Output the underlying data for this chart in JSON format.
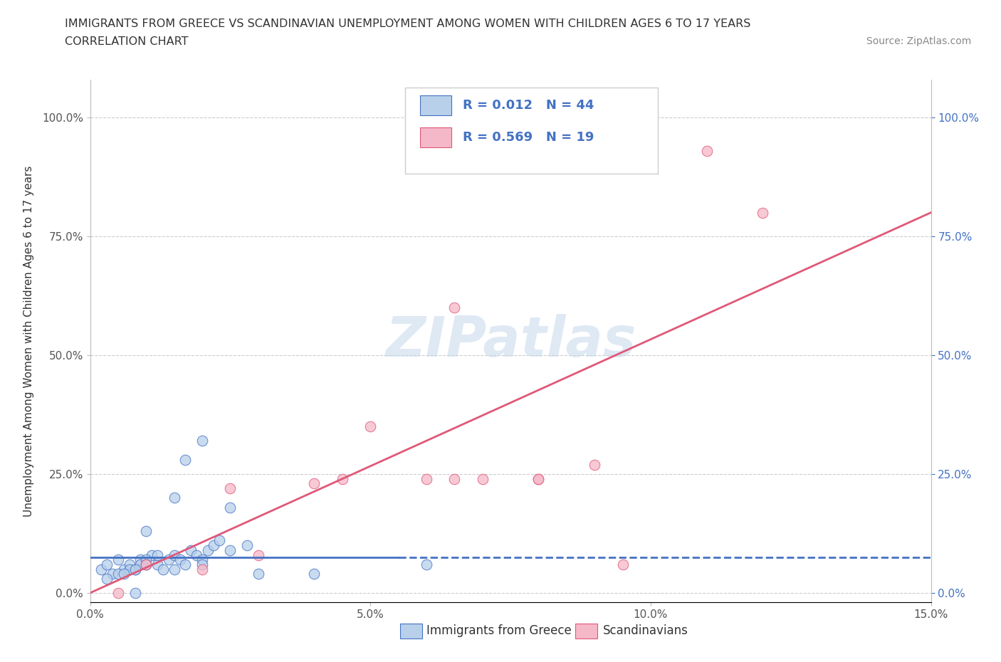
{
  "title_line1": "IMMIGRANTS FROM GREECE VS SCANDINAVIAN UNEMPLOYMENT AMONG WOMEN WITH CHILDREN AGES 6 TO 17 YEARS",
  "title_line2": "CORRELATION CHART",
  "source_text": "Source: ZipAtlas.com",
  "ylabel": "Unemployment Among Women with Children Ages 6 to 17 years",
  "xlim": [
    0.0,
    0.15
  ],
  "ylim": [
    -0.02,
    1.08
  ],
  "yticks": [
    0.0,
    0.25,
    0.5,
    0.75,
    1.0
  ],
  "yticklabels_left": [
    "0.0%",
    "25.0%",
    "50.0%",
    "75.0%",
    "100.0%"
  ],
  "yticklabels_right": [
    "0.0%",
    "25.0%",
    "50.0%",
    "75.0%",
    "100.0%"
  ],
  "xticks": [
    0.0,
    0.05,
    0.1,
    0.15
  ],
  "xticklabels": [
    "0.0%",
    "5.0%",
    "10.0%",
    "15.0%"
  ],
  "watermark": "ZIPatlas",
  "legend_r1": "R = 0.012",
  "legend_n1": "N = 44",
  "legend_r2": "R = 0.569",
  "legend_n2": "N = 19",
  "legend_label1": "Immigrants from Greece",
  "legend_label2": "Scandinavians",
  "color_blue": "#b8d0ea",
  "color_pink": "#f5b8c8",
  "line_blue": "#4472c4",
  "line_pink": "#e05878",
  "grid_color": "#cccccc",
  "blue_scatter_x": [
    0.002,
    0.003,
    0.004,
    0.005,
    0.006,
    0.007,
    0.008,
    0.009,
    0.01,
    0.011,
    0.012,
    0.013,
    0.014,
    0.015,
    0.016,
    0.017,
    0.018,
    0.019,
    0.02,
    0.021,
    0.022,
    0.023,
    0.025,
    0.028,
    0.003,
    0.005,
    0.007,
    0.009,
    0.01,
    0.012,
    0.015,
    0.017,
    0.02,
    0.025,
    0.006,
    0.008,
    0.01,
    0.015,
    0.02,
    0.03,
    0.04,
    0.06,
    0.01,
    0.008
  ],
  "blue_scatter_y": [
    0.05,
    0.06,
    0.04,
    0.07,
    0.05,
    0.06,
    0.05,
    0.07,
    0.06,
    0.08,
    0.06,
    0.05,
    0.07,
    0.08,
    0.07,
    0.06,
    0.09,
    0.08,
    0.07,
    0.09,
    0.1,
    0.11,
    0.09,
    0.1,
    0.03,
    0.04,
    0.05,
    0.06,
    0.07,
    0.08,
    0.2,
    0.28,
    0.32,
    0.18,
    0.04,
    0.05,
    0.06,
    0.05,
    0.06,
    0.04,
    0.04,
    0.06,
    0.13,
    0.0
  ],
  "pink_scatter_x": [
    0.005,
    0.01,
    0.02,
    0.025,
    0.03,
    0.04,
    0.045,
    0.05,
    0.06,
    0.065,
    0.07,
    0.08,
    0.09,
    0.095,
    0.1,
    0.11,
    0.12,
    0.065,
    0.08
  ],
  "pink_scatter_y": [
    0.0,
    0.06,
    0.05,
    0.22,
    0.08,
    0.23,
    0.24,
    0.35,
    0.24,
    0.24,
    0.24,
    0.24,
    0.27,
    0.06,
    0.93,
    0.93,
    0.8,
    0.6,
    0.24
  ],
  "blue_line_x": [
    0.0,
    0.055,
    0.15
  ],
  "blue_line_y": [
    0.075,
    0.075,
    0.075
  ],
  "blue_line_solid_end": 0.055,
  "pink_line_x": [
    0.0,
    0.15
  ],
  "pink_line_y": [
    0.0,
    0.8
  ]
}
